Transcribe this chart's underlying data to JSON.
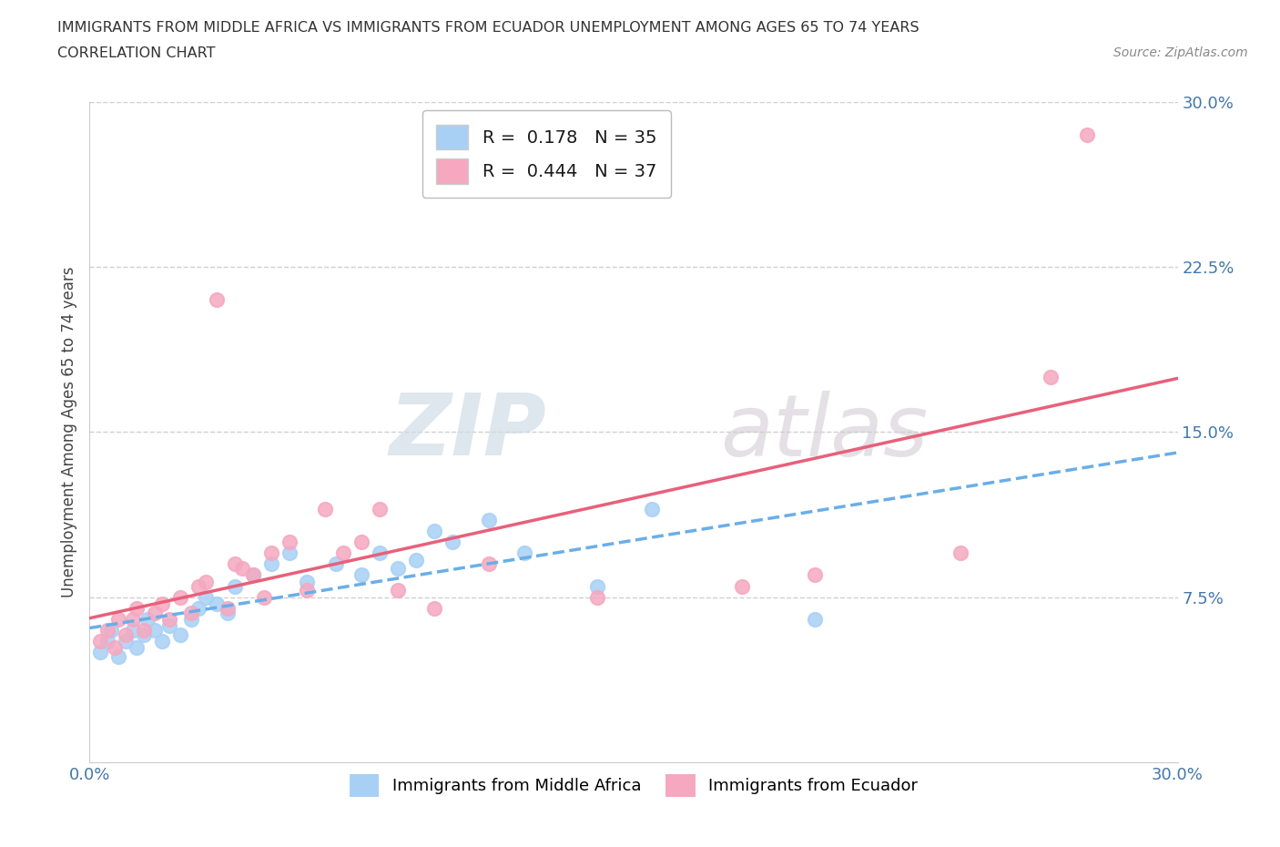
{
  "title_line1": "IMMIGRANTS FROM MIDDLE AFRICA VS IMMIGRANTS FROM ECUADOR UNEMPLOYMENT AMONG AGES 65 TO 74 YEARS",
  "title_line2": "CORRELATION CHART",
  "source_text": "Source: ZipAtlas.com",
  "ylabel": "Unemployment Among Ages 65 to 74 years",
  "xlim": [
    0.0,
    0.3
  ],
  "ylim": [
    0.0,
    0.3
  ],
  "ytick_values": [
    0.075,
    0.15,
    0.225,
    0.3
  ],
  "ytick_labels": [
    "7.5%",
    "15.0%",
    "22.5%",
    "30.0%"
  ],
  "xtick_values": [
    0.0,
    0.3
  ],
  "xtick_labels": [
    "0.0%",
    "30.0%"
  ],
  "color_blue": "#A8D0F5",
  "color_pink": "#F5A8C0",
  "line_blue": "#6AAEE8",
  "line_pink": "#E8607A",
  "R_blue": 0.178,
  "N_blue": 35,
  "R_pink": 0.444,
  "N_pink": 37,
  "legend_label_blue": "Immigrants from Middle Africa",
  "legend_label_pink": "Immigrants from Ecuador",
  "watermark_zip": "ZIP",
  "watermark_atlas": "atlas",
  "background_color": "#ffffff",
  "grid_color": "#d0d0d0",
  "blue_scatter_x": [
    0.003,
    0.005,
    0.006,
    0.008,
    0.01,
    0.012,
    0.013,
    0.015,
    0.016,
    0.018,
    0.02,
    0.022,
    0.025,
    0.028,
    0.03,
    0.032,
    0.035,
    0.038,
    0.04,
    0.045,
    0.05,
    0.055,
    0.06,
    0.068,
    0.075,
    0.08,
    0.085,
    0.09,
    0.095,
    0.1,
    0.11,
    0.12,
    0.14,
    0.155,
    0.2
  ],
  "blue_scatter_y": [
    0.05,
    0.055,
    0.06,
    0.048,
    0.055,
    0.06,
    0.052,
    0.058,
    0.065,
    0.06,
    0.055,
    0.062,
    0.058,
    0.065,
    0.07,
    0.075,
    0.072,
    0.068,
    0.08,
    0.085,
    0.09,
    0.095,
    0.082,
    0.09,
    0.085,
    0.095,
    0.088,
    0.092,
    0.105,
    0.1,
    0.11,
    0.095,
    0.08,
    0.115,
    0.065
  ],
  "pink_scatter_x": [
    0.003,
    0.005,
    0.007,
    0.008,
    0.01,
    0.012,
    0.013,
    0.015,
    0.018,
    0.02,
    0.022,
    0.025,
    0.028,
    0.03,
    0.032,
    0.035,
    0.038,
    0.04,
    0.042,
    0.045,
    0.048,
    0.05,
    0.055,
    0.06,
    0.065,
    0.07,
    0.075,
    0.08,
    0.085,
    0.095,
    0.11,
    0.14,
    0.18,
    0.2,
    0.24,
    0.265,
    0.275
  ],
  "pink_scatter_y": [
    0.055,
    0.06,
    0.052,
    0.065,
    0.058,
    0.065,
    0.07,
    0.06,
    0.068,
    0.072,
    0.065,
    0.075,
    0.068,
    0.08,
    0.082,
    0.21,
    0.07,
    0.09,
    0.088,
    0.085,
    0.075,
    0.095,
    0.1,
    0.078,
    0.115,
    0.095,
    0.1,
    0.115,
    0.078,
    0.07,
    0.09,
    0.075,
    0.08,
    0.085,
    0.095,
    0.175,
    0.285
  ]
}
